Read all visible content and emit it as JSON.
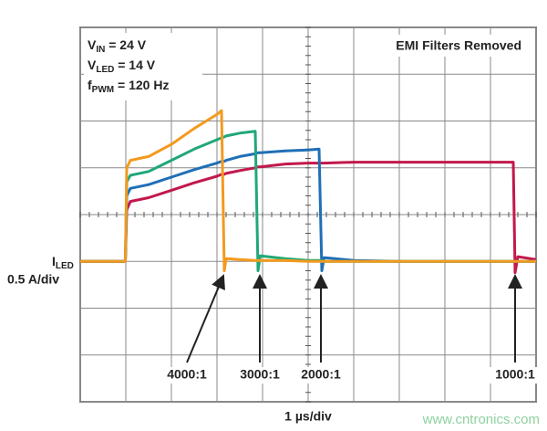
{
  "chart_data": {
    "type": "line",
    "title": "EMI Filters Removed",
    "conditions": [
      {
        "symbol": "V",
        "subscript": "IN",
        "value": " = 24 V"
      },
      {
        "symbol": "V",
        "subscript": "LED",
        "value": " = 14 V"
      },
      {
        "symbol": "f",
        "subscript": "PWM",
        "value": " = 120 Hz"
      }
    ],
    "y_label": {
      "symbol": "I",
      "subscript": "LED",
      "scale": "0.5 A/div"
    },
    "x_label": "1 µs/div",
    "watermark": "www.cntronics.com",
    "xlim": [
      0,
      10
    ],
    "ylim": [
      -1.5,
      2.5
    ],
    "xticks": [
      0,
      1,
      2,
      3,
      4,
      5,
      6,
      7,
      8,
      9,
      10
    ],
    "yticks": [
      -1.5,
      -1,
      -0.5,
      0,
      0.5,
      1,
      1.5,
      2,
      2.5
    ],
    "grid": true,
    "x": [
      0,
      0.99,
      1.02,
      1.1,
      1.5,
      2,
      2.5,
      3,
      3.1,
      3.16,
      3.2,
      3.5,
      3.84,
      3.9,
      3.95,
      4.5,
      5,
      5.24,
      5.3,
      5.35,
      6,
      7,
      8,
      9,
      9.5,
      9.54,
      9.6,
      10
    ],
    "series": [
      {
        "name": "4000:1",
        "color": "#f39a1e",
        "values": [
          0,
          0,
          1.0,
          1.08,
          1.12,
          1.25,
          1.42,
          1.57,
          1.61,
          -0.1,
          0.03,
          0.02,
          0.01,
          0.01,
          0.01,
          0.01,
          0,
          0,
          0,
          0,
          0,
          0,
          0,
          0,
          0,
          0,
          0,
          0
        ]
      },
      {
        "name": "3000:1",
        "color": "#20a878",
        "values": [
          0,
          0,
          0.85,
          0.92,
          0.96,
          1.08,
          1.2,
          1.3,
          1.32,
          1.33,
          1.34,
          1.37,
          1.39,
          -0.1,
          0.06,
          0.03,
          0.01,
          0.01,
          0.01,
          0,
          0,
          0,
          0,
          0,
          0,
          0,
          0,
          0
        ]
      },
      {
        "name": "2000:1",
        "color": "#1f6fb6",
        "values": [
          0,
          0,
          0.7,
          0.78,
          0.82,
          0.9,
          0.98,
          1.05,
          1.07,
          1.07,
          1.08,
          1.12,
          1.15,
          1.16,
          1.16,
          1.18,
          1.19,
          1.2,
          -0.1,
          0.04,
          0.01,
          0,
          0,
          0,
          0,
          0,
          0,
          0
        ]
      },
      {
        "name": "1000:1",
        "color": "#c2184c",
        "values": [
          0,
          0,
          0.55,
          0.64,
          0.68,
          0.76,
          0.84,
          0.91,
          0.93,
          0.93,
          0.94,
          0.97,
          1.0,
          1.01,
          1.01,
          1.04,
          1.05,
          1.05,
          1.05,
          1.05,
          1.06,
          1.06,
          1.06,
          1.06,
          1.06,
          -0.12,
          0.05,
          0.02
        ]
      }
    ]
  }
}
